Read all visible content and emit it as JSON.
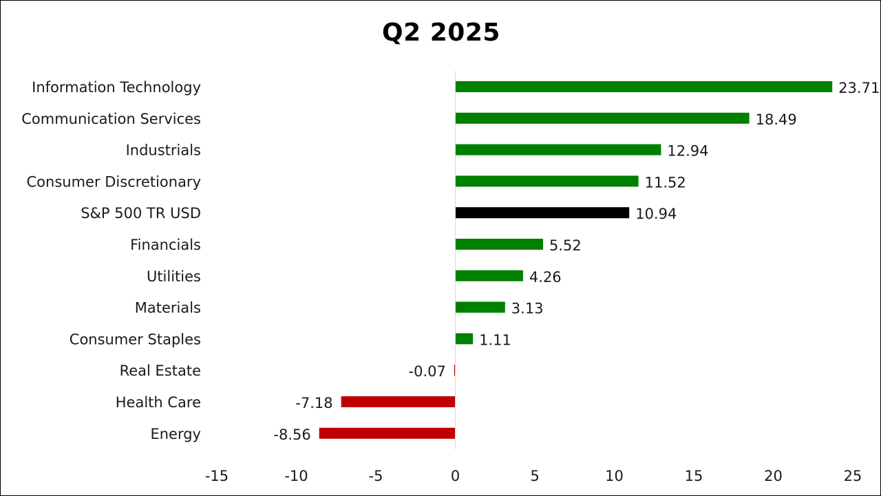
{
  "chart_data": {
    "type": "bar",
    "orientation": "horizontal",
    "title": "Q2 2025",
    "xlabel": "",
    "ylabel": "",
    "xlim": [
      -15,
      25
    ],
    "xticks": [
      "-15",
      "-10",
      "-5",
      "0",
      "5",
      "10",
      "15",
      "20",
      "25"
    ],
    "grid": false,
    "legend": "none",
    "categories": [
      "Information Technology",
      "Communication Services",
      "Industrials",
      "Consumer Discretionary",
      "S&P 500 TR USD",
      "Financials",
      "Utilities",
      "Materials",
      "Consumer Staples",
      "Real Estate",
      "Health Care",
      "Energy"
    ],
    "values": [
      23.71,
      18.49,
      12.94,
      11.52,
      10.94,
      5.52,
      4.26,
      3.13,
      1.11,
      -0.07,
      -7.18,
      -8.56
    ],
    "value_labels": [
      "23.71",
      "18.49",
      "12.94",
      "11.52",
      "10.94",
      "5.52",
      "4.26",
      "3.13",
      "1.11",
      "-0.07",
      "-7.18",
      "-8.56"
    ],
    "benchmark": "S&P 500 TR USD",
    "colors": {
      "positive": "#008000",
      "negative": "#c00000",
      "benchmark": "#000000",
      "axis": "#d9d9d9"
    }
  }
}
